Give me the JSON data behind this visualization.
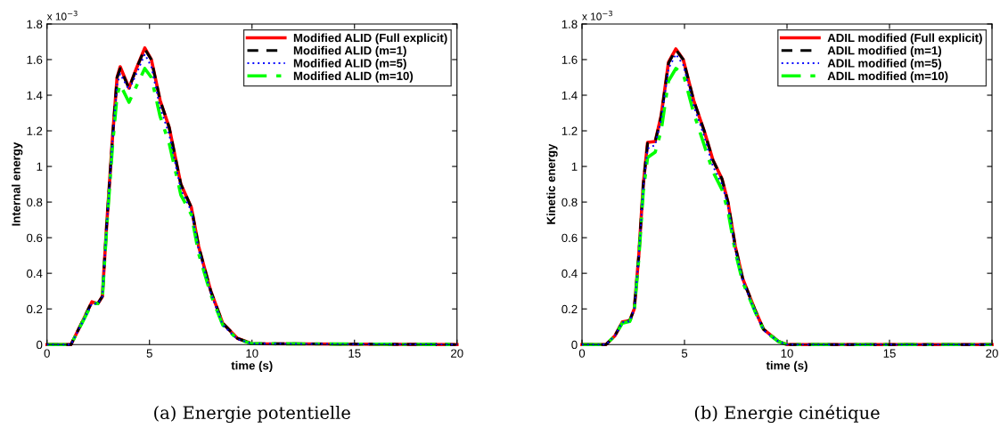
{
  "chart_data": [
    {
      "type": "line",
      "title": "(a) Energie potentielle",
      "xlabel": "time (s)",
      "ylabel": "Internal energy",
      "annotations": [
        "x 10$^{−3}$"
      ],
      "x": [
        0,
        1.17,
        1.75,
        2.19,
        2.48,
        2.7,
        2.91,
        3.2,
        3.42,
        3.57,
        4.0,
        4.36,
        4.77,
        5.09,
        5.52,
        5.96,
        6.53,
        7.04,
        7.4,
        7.99,
        8.57,
        9.29,
        10,
        20
      ],
      "series": [
        {
          "name": "Modified ALID (Full explicit)",
          "color": "#ff0000",
          "line_style": "solid",
          "values": [
            0,
            0,
            0.135,
            0.24,
            0.23,
            0.27,
            0.67,
            1.17,
            1.5,
            1.56,
            1.44,
            1.55,
            1.665,
            1.6,
            1.37,
            1.22,
            0.9,
            0.77,
            0.55,
            0.3,
            0.12,
            0.035,
            0.005,
            0
          ]
        },
        {
          "name": "Modified ALID (m=1)",
          "color": "#000000",
          "line_style": "dashed",
          "values": [
            0,
            0,
            0.135,
            0.24,
            0.23,
            0.27,
            0.67,
            1.17,
            1.5,
            1.55,
            1.44,
            1.55,
            1.66,
            1.6,
            1.37,
            1.22,
            0.9,
            0.77,
            0.55,
            0.3,
            0.12,
            0.035,
            0.005,
            0
          ]
        },
        {
          "name": "Modified ALID (m=5)",
          "color": "#0000ff",
          "line_style": "dotted",
          "values": [
            0,
            0,
            0.13,
            0.23,
            0.23,
            0.27,
            0.66,
            1.15,
            1.46,
            1.52,
            1.43,
            1.52,
            1.63,
            1.56,
            1.33,
            1.18,
            0.87,
            0.75,
            0.53,
            0.29,
            0.11,
            0.03,
            0.005,
            0
          ]
        },
        {
          "name": "Modified ALID (m=10)",
          "color": "#00ff00",
          "line_style": "dashdot",
          "values": [
            0,
            0,
            0.13,
            0.23,
            0.23,
            0.26,
            0.65,
            1.12,
            1.4,
            1.46,
            1.36,
            1.45,
            1.55,
            1.5,
            1.28,
            1.13,
            0.84,
            0.73,
            0.51,
            0.28,
            0.11,
            0.03,
            0.005,
            0
          ]
        }
      ],
      "xlim": [
        0,
        20
      ],
      "xticks": [
        0,
        5,
        10,
        15,
        20
      ],
      "ylim": [
        0,
        1.8
      ],
      "yticks": [
        0,
        0.2,
        0.4,
        0.6,
        0.8,
        1,
        1.2,
        1.4,
        1.6,
        1.8
      ],
      "grid": false,
      "legend": "top right",
      "marker": "none"
    },
    {
      "type": "line",
      "title": "(b) Energie cinétique",
      "xlabel": "time (s)",
      "ylabel": "Kinetic energy",
      "annotations": [
        "x 10$^{−3}$"
      ],
      "x": [
        0,
        1.17,
        1.61,
        1.97,
        2.33,
        2.55,
        2.77,
        2.99,
        3.2,
        3.57,
        3.86,
        4.22,
        4.58,
        4.94,
        5.45,
        5.96,
        6.39,
        6.83,
        7.12,
        7.48,
        7.84,
        8.42,
        8.86,
        9.58,
        10,
        20
      ],
      "series": [
        {
          "name": "ADIL modified (Full explicit)",
          "color": "#ff0000",
          "line_style": "solid",
          "values": [
            0,
            0,
            0.05,
            0.127,
            0.135,
            0.2,
            0.5,
            0.9,
            1.135,
            1.14,
            1.285,
            1.585,
            1.66,
            1.6,
            1.37,
            1.2,
            1.035,
            0.93,
            0.8,
            0.55,
            0.37,
            0.2,
            0.085,
            0.018,
            0,
            0
          ]
        },
        {
          "name": "ADIL modified (m=1)",
          "color": "#000000",
          "line_style": "dashed",
          "values": [
            0,
            0,
            0.05,
            0.127,
            0.135,
            0.2,
            0.5,
            0.9,
            1.13,
            1.14,
            1.28,
            1.58,
            1.655,
            1.6,
            1.37,
            1.2,
            1.035,
            0.93,
            0.8,
            0.55,
            0.37,
            0.2,
            0.085,
            0.018,
            0,
            0
          ]
        },
        {
          "name": "ADIL modified (m=5)",
          "color": "#0000ff",
          "line_style": "dotted",
          "values": [
            0,
            0,
            0.05,
            0.125,
            0.13,
            0.2,
            0.49,
            0.88,
            1.1,
            1.12,
            1.26,
            1.55,
            1.63,
            1.57,
            1.34,
            1.17,
            1.0,
            0.9,
            0.78,
            0.53,
            0.36,
            0.19,
            0.08,
            0.017,
            0,
            0
          ]
        },
        {
          "name": "ADIL modified (m=10)",
          "color": "#00ff00",
          "line_style": "dashdot",
          "values": [
            0,
            0,
            0.05,
            0.12,
            0.13,
            0.19,
            0.48,
            0.86,
            1.05,
            1.08,
            1.2,
            1.48,
            1.55,
            1.52,
            1.3,
            1.12,
            0.97,
            0.87,
            0.75,
            0.52,
            0.35,
            0.19,
            0.08,
            0.017,
            0,
            0
          ]
        }
      ],
      "xlim": [
        0,
        20
      ],
      "xticks": [
        0,
        5,
        10,
        15,
        20
      ],
      "ylim": [
        0,
        1.8
      ],
      "yticks": [
        0,
        0.2,
        0.4,
        0.6,
        0.8,
        1,
        1.2,
        1.4,
        1.6,
        1.8
      ],
      "grid": false,
      "legend": "top right",
      "marker": "none"
    }
  ]
}
